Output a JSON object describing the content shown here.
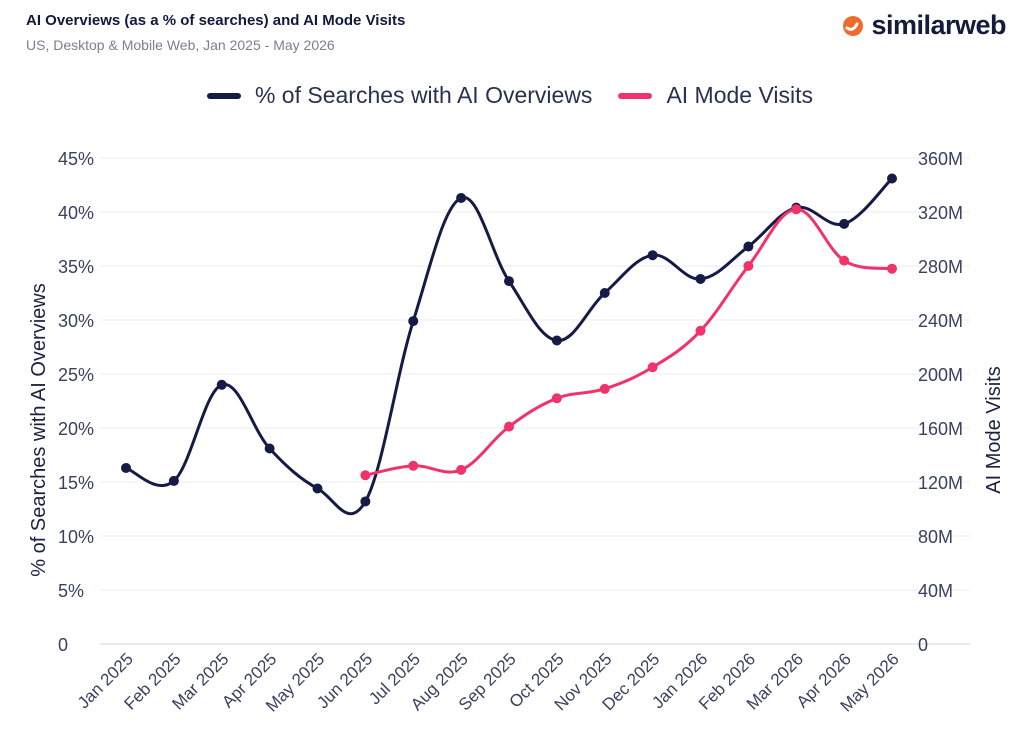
{
  "header": {
    "title": "AI Overviews (as a % of searches) and AI Mode Visits",
    "subtitle": "US, Desktop & Mobile Web, Jan 2025 - May 2026",
    "logo_text": "similarweb"
  },
  "colors": {
    "overviews": "#151b45",
    "mode": "#f0336a",
    "grid": "#ececf0",
    "logo_accent": "#f06a2e"
  },
  "chart_data": {
    "type": "line",
    "categories": [
      "Jan 2025",
      "Feb 2025",
      "Mar 2025",
      "Apr 2025",
      "May 2025",
      "Jun 2025",
      "Jul 2025",
      "Aug 2025",
      "Sep 2025",
      "Oct 2025",
      "Nov 2025",
      "Dec 2025",
      "Jan 2026",
      "Feb 2026",
      "Mar 2026",
      "Apr 2026",
      "May 2026"
    ],
    "series": [
      {
        "name": "% of Searches with AI Overviews",
        "axis": "left",
        "values": [
          16.3,
          15.1,
          24.0,
          18.1,
          14.4,
          13.2,
          29.9,
          41.3,
          33.6,
          28.1,
          32.5,
          36.0,
          33.8,
          36.8,
          40.4,
          38.9,
          43.1
        ]
      },
      {
        "name": "AI Mode Visits",
        "axis": "right",
        "values": [
          null,
          null,
          null,
          null,
          null,
          125,
          132,
          129,
          161,
          182,
          189,
          205,
          232,
          280,
          322,
          284,
          278
        ]
      }
    ],
    "y_left": {
      "label": "% of Searches with AI Overviews",
      "min": 0,
      "max": 45,
      "step": 5,
      "tick_labels": [
        "0",
        "5%",
        "10%",
        "15%",
        "20%",
        "25%",
        "30%",
        "35%",
        "40%",
        "45%"
      ]
    },
    "y_right": {
      "label": "AI Mode Visits",
      "min": 0,
      "max": 360,
      "step": 40,
      "tick_labels": [
        "0",
        "40M",
        "80M",
        "120M",
        "160M",
        "200M",
        "240M",
        "280M",
        "320M",
        "360M"
      ]
    },
    "grid": true,
    "legend_position": "top-center"
  }
}
